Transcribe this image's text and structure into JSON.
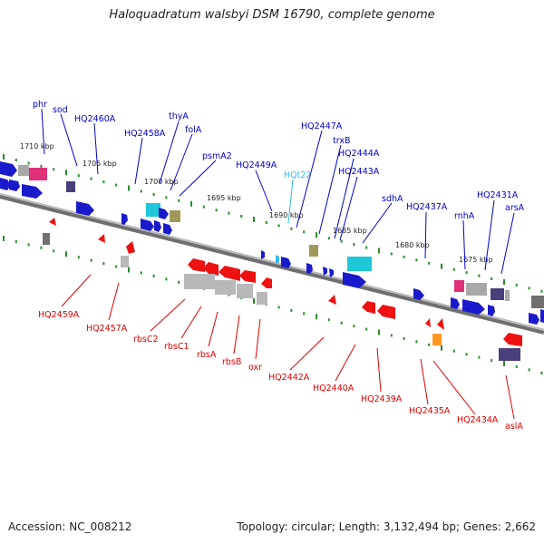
{
  "title": "Haloquadratum walsbyi DSM 16790, complete genome",
  "footer": {
    "accession": "Accession: NC_008212",
    "topology": "Topology: circular; Length: 3,132,494 bp; Genes: 2,662"
  },
  "colors": {
    "forward_label": "#0000cc",
    "reverse_label": "#dd0000",
    "trna_label": "#33bbee",
    "backbone": "#808080",
    "tick": "#2a8a2a"
  },
  "kbp_labels": [
    "1710 kbp",
    "1705 kbp",
    "1700 kbp",
    "1695 kbp",
    "1690 kbp",
    "1685 kbp",
    "1680 kbp",
    "1675 kbp"
  ],
  "forward_genes": [
    "phr",
    "sod",
    "HQ2460A",
    "HQ2458A",
    "thyA",
    "folA",
    "psmA2",
    "HQ2449A",
    "HQt22",
    "HQ2447A",
    "trxB",
    "HQ2444A",
    "HQ2443A",
    "sdhA",
    "HQ2437A",
    "rnhA",
    "HQ2431A",
    "arsA"
  ],
  "reverse_genes": [
    "HQ2459A",
    "HQ2457A",
    "rbsC2",
    "rbsC1",
    "rbsA",
    "rbsB",
    "oxr",
    "HQ2442A",
    "HQ2440A",
    "HQ2439A",
    "HQ2435A",
    "HQ2434A",
    "aslA"
  ]
}
